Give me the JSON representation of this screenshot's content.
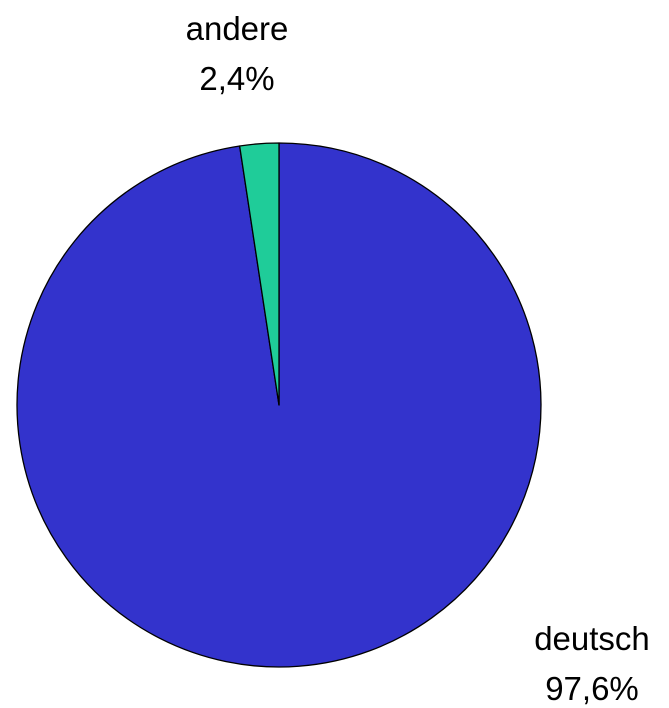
{
  "chart_data": {
    "type": "pie",
    "title": "",
    "slices": [
      {
        "label": "deutsch",
        "value": 97.6,
        "value_label": "97,6%",
        "color": "#3333cc"
      },
      {
        "label": "andere",
        "value": 2.4,
        "value_label": "2,4%",
        "color": "#1fcc99"
      }
    ],
    "start_angle_deg": 0,
    "direction": "clockwise",
    "outline_color": "#000000",
    "legend": "none"
  }
}
